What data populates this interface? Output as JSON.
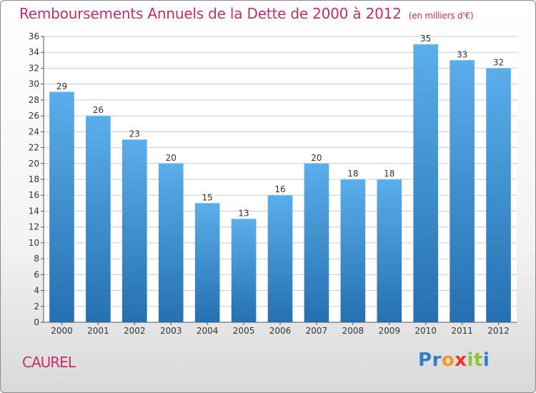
{
  "page": {
    "title": "Remboursements Annuels de la Dette de 2000 à 2012",
    "subtitle": "(en milliers d'€)",
    "commune": "CAUREL",
    "logo": {
      "letters": [
        "P",
        "r",
        "o",
        "x",
        "i",
        "t",
        "i"
      ],
      "colors": [
        "#2f7fc4",
        "#2f7fc4",
        "#f29a1f",
        "#e8322a",
        "#8cc43a",
        "#8cc43a",
        "#2f7fc4"
      ]
    }
  },
  "chart_data": {
    "type": "bar",
    "title": "Remboursements Annuels de la Dette de 2000 à 2012",
    "subtitle": "(en milliers d'€)",
    "categories": [
      "2000",
      "2001",
      "2002",
      "2003",
      "2004",
      "2005",
      "2006",
      "2007",
      "2008",
      "2009",
      "2010",
      "2011",
      "2012"
    ],
    "values": [
      29,
      26,
      23,
      20,
      15,
      13,
      16,
      20,
      18,
      18,
      35,
      33,
      32
    ],
    "ylim": [
      0,
      36
    ],
    "yticks": [
      0,
      2,
      4,
      6,
      8,
      10,
      12,
      14,
      16,
      18,
      20,
      22,
      24,
      26,
      28,
      30,
      32,
      34,
      36
    ],
    "xlabel": "",
    "ylabel": "",
    "grid": true,
    "bar_color_top": "#5aaeea",
    "bar_color_bottom": "#2670b0",
    "text_color": "#333333",
    "grid_color": "#cccccc"
  }
}
